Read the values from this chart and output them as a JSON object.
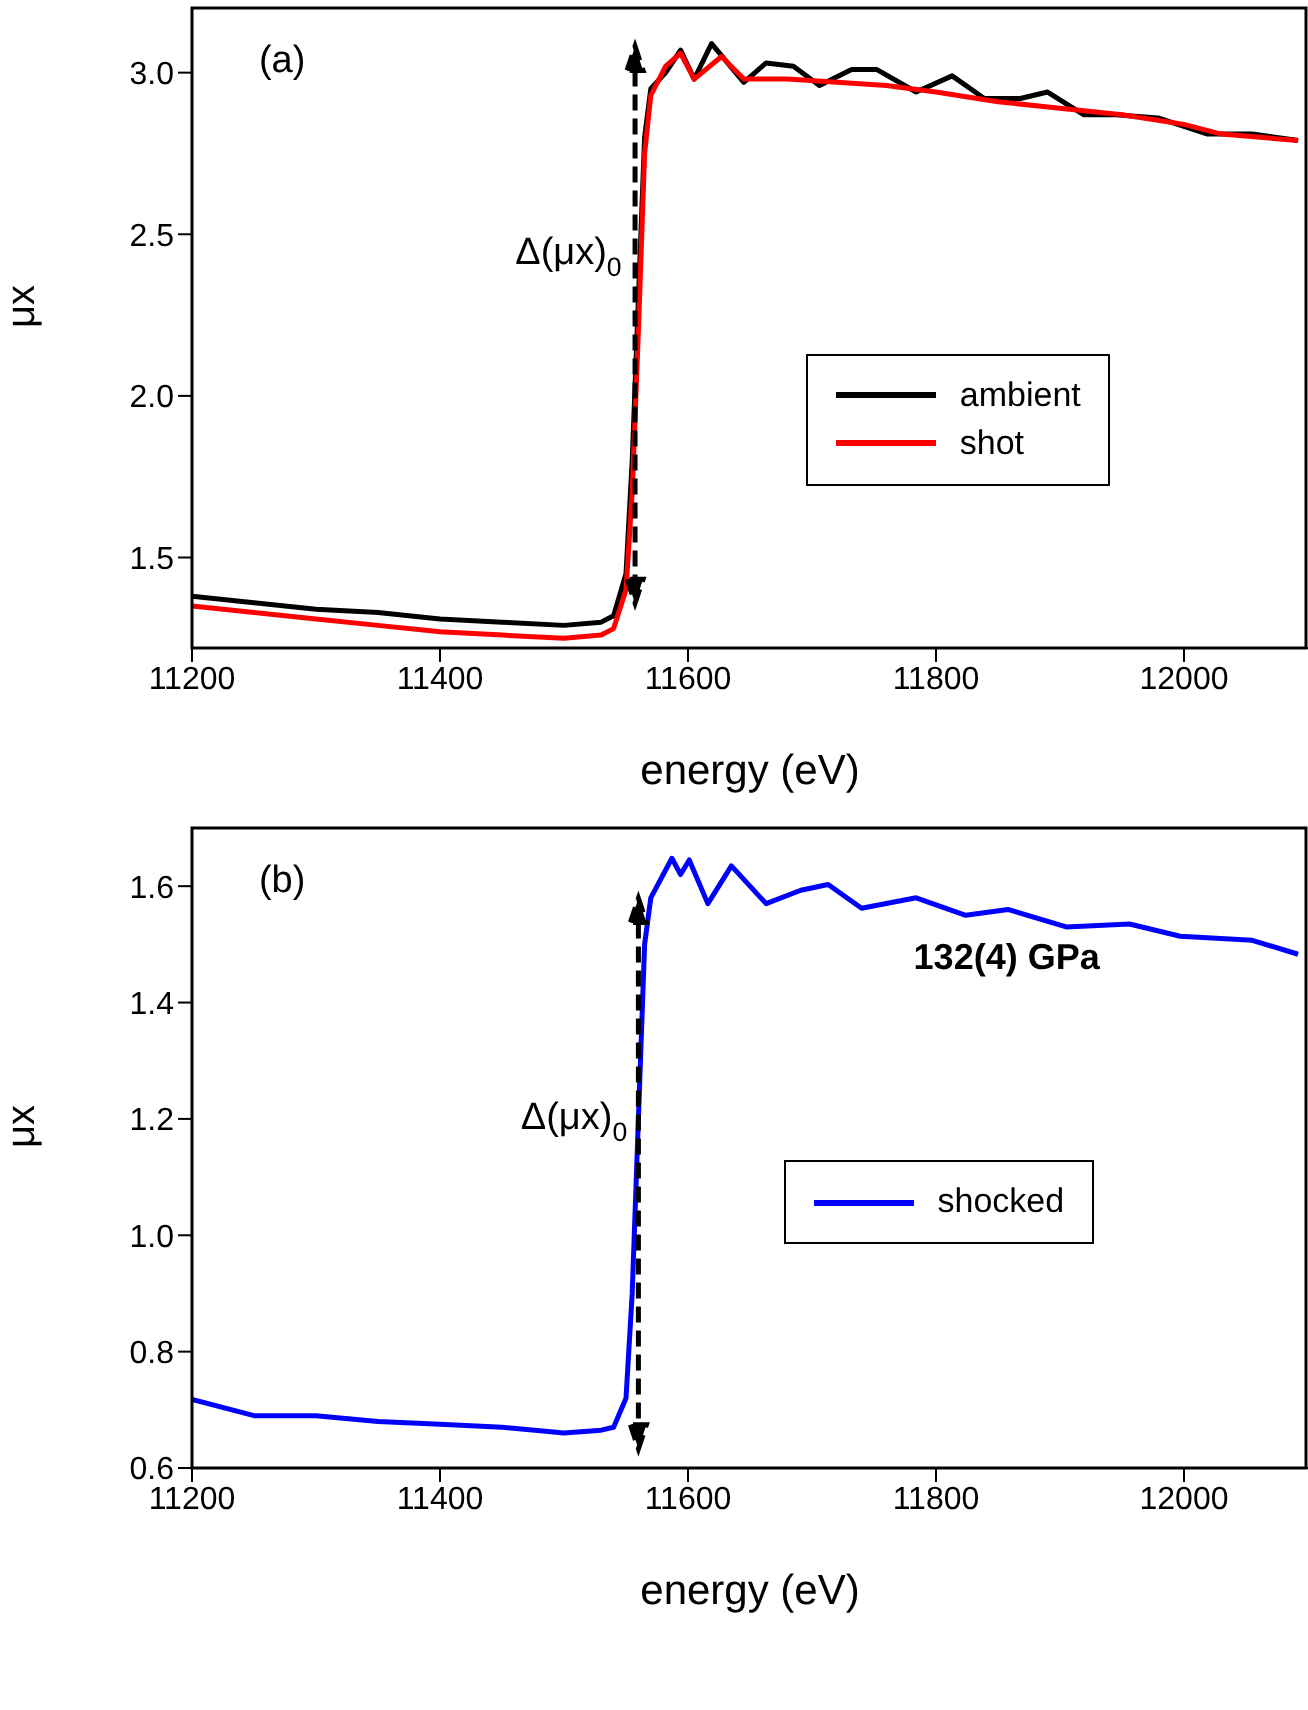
{
  "chart_data": [
    {
      "type": "line",
      "xlabel": "energy (eV)",
      "ylabel": "μx",
      "annotations": [
        "(a)",
        "Δ(μx)$_{0}$"
      ],
      "xlim": [
        11200,
        12100
      ],
      "xticks": [
        11200,
        11400,
        11600,
        11800,
        12000
      ],
      "ylim": [
        1.22,
        3.2
      ],
      "yticks": [
        1.5,
        {
          "value": 2.0,
          "label": "2.0"
        },
        2.5,
        {
          "value": 3.0,
          "label": "3.0"
        }
      ],
      "legend": "right",
      "grid": false,
      "marker": "none",
      "line_style": "solid",
      "series": [
        {
          "name": "ambient",
          "color": "#000000",
          "x": [
            11200,
            11250,
            11300,
            11350,
            11400,
            11450,
            11500,
            11530,
            11540,
            11550,
            11555,
            11560,
            11565,
            11570,
            11582,
            11594,
            11605,
            11619,
            11645,
            11663,
            11685,
            11706,
            11732,
            11752,
            11784,
            11813,
            11839,
            11868,
            11890,
            11919,
            11945,
            11979,
            12019,
            12055,
            12092
          ],
          "values": [
            1.38,
            1.36,
            1.34,
            1.33,
            1.31,
            1.3,
            1.29,
            1.3,
            1.32,
            1.45,
            1.8,
            2.3,
            2.8,
            2.95,
            3.0,
            3.07,
            2.98,
            3.09,
            2.97,
            3.03,
            3.02,
            2.96,
            3.01,
            3.01,
            2.94,
            2.99,
            2.92,
            2.92,
            2.94,
            2.87,
            2.87,
            2.86,
            2.81,
            2.81,
            2.79
          ]
        },
        {
          "name": "shot",
          "color": "#ff0000",
          "x": [
            11200,
            11250,
            11300,
            11350,
            11400,
            11450,
            11500,
            11530,
            11540,
            11550,
            11555,
            11560,
            11565,
            11570,
            11582,
            11594,
            11605,
            11627,
            11645,
            11680,
            11720,
            11760,
            11800,
            11850,
            11900,
            11950,
            12000,
            12030,
            12092
          ],
          "values": [
            1.35,
            1.33,
            1.31,
            1.29,
            1.27,
            1.26,
            1.25,
            1.26,
            1.28,
            1.4,
            1.7,
            2.2,
            2.75,
            2.93,
            3.02,
            3.06,
            2.98,
            3.05,
            2.98,
            2.98,
            2.97,
            2.96,
            2.94,
            2.91,
            2.89,
            2.87,
            2.84,
            2.81,
            2.79
          ]
        }
      ]
    },
    {
      "type": "line",
      "xlabel": "energy (eV)",
      "ylabel": "μx",
      "annotations": [
        "(b)",
        "Δ(μx)$_{0}$",
        "132(4) GPa"
      ],
      "xlim": [
        11200,
        12100
      ],
      "xticks": [
        11200,
        11400,
        11600,
        11800,
        12000
      ],
      "ylim": [
        0.6,
        1.7
      ],
      "yticks": [
        0.6,
        0.8,
        {
          "value": 1.0,
          "label": "1.0"
        },
        1.2,
        1.4,
        1.6
      ],
      "legend": "right",
      "grid": false,
      "marker": "none",
      "line_style": "solid",
      "series": [
        {
          "name": "shocked",
          "color": "#0000ff",
          "x": [
            11200,
            11250,
            11300,
            11350,
            11400,
            11450,
            11500,
            11530,
            11540,
            11550,
            11555,
            11560,
            11565,
            11570,
            11587,
            11594,
            11601,
            11616,
            11635,
            11663,
            11691,
            11713,
            11740,
            11784,
            11824,
            11858,
            11905,
            11956,
            11997,
            12055,
            12092
          ],
          "values": [
            0.718,
            0.69,
            0.69,
            0.68,
            0.675,
            0.67,
            0.66,
            0.665,
            0.67,
            0.72,
            0.9,
            1.2,
            1.5,
            1.58,
            1.648,
            1.62,
            1.645,
            1.57,
            1.635,
            1.57,
            1.593,
            1.603,
            1.562,
            1.58,
            1.55,
            1.56,
            1.53,
            1.535,
            1.514,
            1.507,
            1.483
          ]
        }
      ]
    }
  ]
}
